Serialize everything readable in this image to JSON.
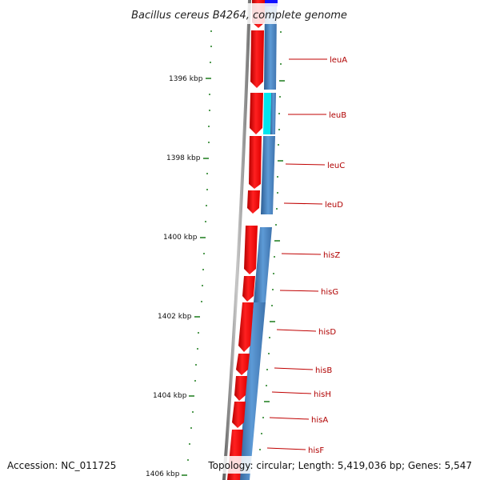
{
  "title": "Bacillus cereus B4264, complete genome",
  "footer": {
    "accession": "Accession: NC_011725",
    "topology": "Topology: circular; Length: 5,419,036 bp; Genes: 5,547"
  },
  "ticks": [
    "1396 kbp",
    "1398 kbp",
    "1400 kbp",
    "1402 kbp",
    "1404 kbp",
    "1406 kbp"
  ],
  "genes": [
    "leuA",
    "leuB",
    "leuC",
    "leuD",
    "hisZ",
    "hisG",
    "hisD",
    "hisB",
    "hisH",
    "hisA",
    "hisF"
  ],
  "colors": {
    "forward_cds": "#ff0000",
    "rna_track": "#4a86c8",
    "highlight": "#00e5ee",
    "top_feature": "#1010ff",
    "tick": "#1a7a1a",
    "backbone": "#8a8a8a",
    "label": "#b00000"
  }
}
